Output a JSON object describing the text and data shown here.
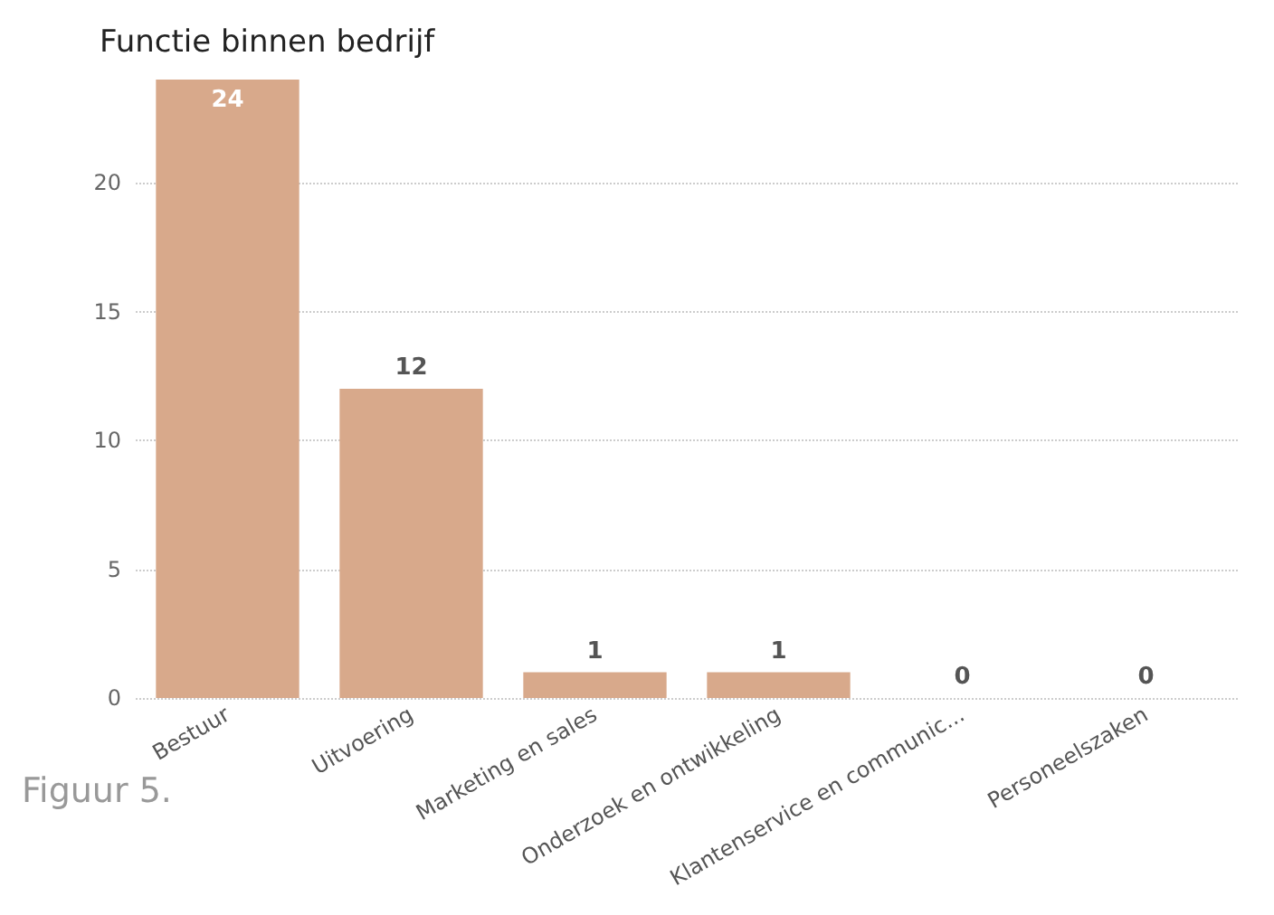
{
  "chart_data": {
    "type": "bar",
    "title": "Functie binnen bedrijf",
    "categories": [
      "Bestuur",
      "Uitvoering",
      "Marketing en sales",
      "Onderzoek en ontwikkeling",
      "Klantenservice en communic...",
      "Personeelszaken"
    ],
    "values": [
      24,
      12,
      1,
      1,
      0,
      0
    ],
    "color": "#d8a98b",
    "ylim": [
      0,
      24
    ],
    "yticks": [
      0,
      5,
      10,
      15,
      20
    ],
    "grid": "y",
    "data_labels": true,
    "annotations": [
      "Figuur 5."
    ]
  }
}
